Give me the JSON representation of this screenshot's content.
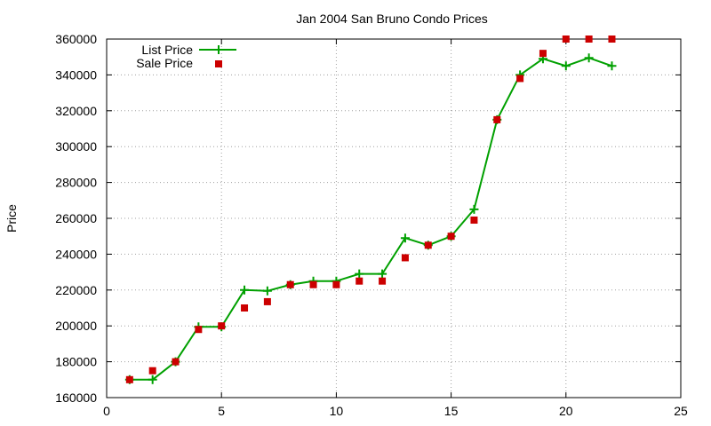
{
  "chart_data": {
    "type": "line",
    "title": "Jan 2004 San Bruno Condo Prices",
    "xlabel": "",
    "ylabel": "Price",
    "xlim": [
      0,
      25
    ],
    "ylim": [
      160000,
      360000
    ],
    "x_ticks": [
      0,
      5,
      10,
      15,
      20,
      25
    ],
    "y_ticks": [
      160000,
      180000,
      200000,
      220000,
      240000,
      260000,
      280000,
      300000,
      320000,
      340000,
      360000
    ],
    "grid": true,
    "legend_position": "top-left",
    "series": [
      {
        "name": "List Price",
        "style": "line-with-plus-markers",
        "color": "#00a000",
        "x": [
          1,
          2,
          3,
          4,
          5,
          6,
          7,
          8,
          9,
          10,
          11,
          12,
          13,
          14,
          15,
          16,
          17,
          18,
          19,
          20,
          21,
          22
        ],
        "y": [
          170000,
          170000,
          180000,
          199500,
          199500,
          220000,
          219500,
          223000,
          225000,
          225000,
          229000,
          229000,
          249000,
          245000,
          250000,
          265000,
          315000,
          340000,
          349000,
          345000,
          349500,
          345000
        ]
      },
      {
        "name": "Sale Price",
        "style": "square-markers",
        "color": "#cc0000",
        "x": [
          1,
          2,
          3,
          4,
          5,
          6,
          7,
          8,
          9,
          10,
          11,
          12,
          13,
          14,
          15,
          16,
          17,
          18,
          19,
          20,
          21,
          22
        ],
        "y": [
          170000,
          175000,
          180000,
          198000,
          200000,
          210000,
          213500,
          223000,
          223000,
          223000,
          225000,
          225000,
          238000,
          245000,
          250000,
          259000,
          315000,
          338000,
          352000,
          360000,
          360000,
          360000
        ]
      }
    ]
  }
}
